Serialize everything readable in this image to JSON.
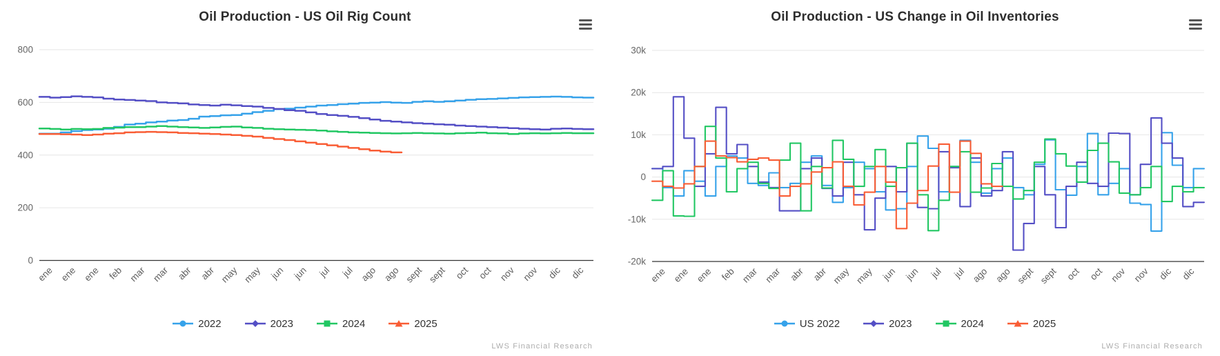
{
  "credits": "LWS Financial Research",
  "chart_data": [
    {
      "type": "line",
      "step": true,
      "title": "Oil Production - US Oil Rig Count",
      "xlabel": "",
      "ylabel": "",
      "grid": true,
      "legend_position": "bottom",
      "ylim": [
        0,
        800
      ],
      "ytick_values": [
        800,
        600,
        400,
        200,
        0
      ],
      "ytick_labels": [
        "800",
        "600",
        "400",
        "200",
        "0"
      ],
      "weeks": 52,
      "x_tick_labels": [
        "ene",
        "ene",
        "ene",
        "feb",
        "mar",
        "mar",
        "abr",
        "abr",
        "may",
        "may",
        "jun",
        "jun",
        "jul",
        "jul",
        "ago",
        "ago",
        "sept",
        "sept",
        "oct",
        "oct",
        "nov",
        "nov",
        "dic",
        "dic"
      ],
      "series": [
        {
          "name": "2022",
          "color": "#36a2ea",
          "marker": "circle",
          "values": [
            481,
            481,
            486,
            491,
            495,
            497,
            500,
            507,
            516,
            519,
            524,
            527,
            531,
            533,
            538,
            546,
            548,
            551,
            552,
            557,
            563,
            568,
            574,
            576,
            580,
            584,
            588,
            590,
            593,
            595,
            598,
            599,
            601,
            599,
            598,
            602,
            604,
            602,
            604,
            607,
            610,
            612,
            613,
            615,
            617,
            619,
            620,
            621,
            622,
            621,
            619,
            618
          ]
        },
        {
          "name": "2023",
          "color": "#544fc5",
          "marker": "diamond",
          "values": [
            621,
            618,
            620,
            623,
            621,
            619,
            614,
            611,
            609,
            607,
            605,
            600,
            598,
            596,
            592,
            590,
            588,
            591,
            589,
            586,
            584,
            579,
            575,
            570,
            568,
            562,
            556,
            552,
            549,
            545,
            540,
            535,
            530,
            527,
            524,
            521,
            519,
            517,
            515,
            512,
            510,
            508,
            506,
            504,
            502,
            500,
            498,
            497,
            500,
            501,
            499,
            498
          ]
        },
        {
          "name": "2024",
          "color": "#22c763",
          "marker": "square",
          "values": [
            501,
            499,
            497,
            499,
            498,
            499,
            503,
            504,
            506,
            506,
            508,
            510,
            508,
            506,
            505,
            503,
            505,
            507,
            508,
            505,
            503,
            500,
            498,
            497,
            496,
            495,
            493,
            490,
            488,
            486,
            485,
            484,
            483,
            482,
            483,
            484,
            483,
            482,
            481,
            483,
            484,
            485,
            483,
            482,
            480,
            482,
            483,
            482,
            483,
            484,
            483,
            483
          ]
        },
        {
          "name": "2025",
          "color": "#f95d35",
          "marker": "triangle",
          "values": [
            480,
            480,
            479,
            478,
            476,
            478,
            481,
            483,
            486,
            487,
            488,
            487,
            486,
            484,
            483,
            481,
            480,
            478,
            476,
            473,
            470,
            465,
            461,
            457,
            452,
            447,
            442,
            437,
            432,
            427,
            422,
            417,
            413,
            410
          ]
        }
      ]
    },
    {
      "type": "line",
      "step": true,
      "title": "Oil Production - US Change in Oil Inventories",
      "xlabel": "",
      "ylabel": "",
      "grid": true,
      "legend_position": "bottom",
      "ylim": [
        -20000,
        30000
      ],
      "ytick_values": [
        30000,
        20000,
        10000,
        0,
        -10000,
        -20000
      ],
      "ytick_labels": [
        "30k",
        "20k",
        "10k",
        "0",
        "-10k",
        "-20k"
      ],
      "weeks": 52,
      "x_tick_labels": [
        "ene",
        "ene",
        "ene",
        "feb",
        "mar",
        "mar",
        "abr",
        "abr",
        "may",
        "may",
        "jun",
        "jun",
        "jul",
        "jul",
        "ago",
        "ago",
        "sept",
        "sept",
        "oct",
        "oct",
        "nov",
        "nov",
        "dic",
        "dic"
      ],
      "series": [
        {
          "name": "US 2022",
          "color": "#36a2ea",
          "marker": "circle",
          "values": [
            2000,
            -2500,
            -4500,
            1500,
            -1000,
            -4500,
            2500,
            5000,
            4500,
            -1500,
            -2000,
            1000,
            -2500,
            -1500,
            3500,
            5000,
            -2000,
            -6000,
            -2500,
            3500,
            2000,
            -3500,
            -7800,
            -7500,
            2500,
            9700,
            6800,
            -3500,
            2500,
            8700,
            3500,
            -3800,
            2000,
            4500,
            -2500,
            -4200,
            3000,
            8800,
            -3000,
            -4300,
            2500,
            10300,
            -4200,
            -1500,
            2000,
            -6200,
            -6500,
            -12800,
            10500,
            2800,
            -2500,
            2000
          ]
        },
        {
          "name": "2023",
          "color": "#544fc5",
          "marker": "diamond",
          "values": [
            2000,
            2500,
            19000,
            9200,
            -2200,
            5500,
            16500,
            5500,
            7700,
            2500,
            -1200,
            -2500,
            -8000,
            -8000,
            2000,
            4500,
            -2700,
            -4500,
            3500,
            -4200,
            -12500,
            -5000,
            2500,
            -3500,
            8000,
            -7200,
            -7500,
            6000,
            2200,
            -7000,
            4500,
            -4500,
            -3200,
            6000,
            -17300,
            -11000,
            2500,
            -4200,
            -12000,
            -2200,
            3500,
            -1500,
            -2200,
            10400,
            10300,
            -4200,
            3000,
            14000,
            8000,
            4500,
            -7000,
            -6000
          ]
        },
        {
          "name": "2024",
          "color": "#22c763",
          "marker": "square",
          "values": [
            -5500,
            1500,
            -9200,
            -9300,
            2500,
            12000,
            4500,
            -3500,
            2000,
            3500,
            -1500,
            -2700,
            4000,
            8000,
            -8000,
            2500,
            -2600,
            8700,
            4200,
            -2200,
            2500,
            6500,
            -2200,
            2200,
            8000,
            -4200,
            -12700,
            -5500,
            2500,
            6000,
            -3600,
            -2600,
            3200,
            -2200,
            -5200,
            -3200,
            3500,
            9000,
            5500,
            2600,
            -1200,
            6300,
            8000,
            3600,
            -3800,
            -4200,
            -2500,
            2500,
            -5800,
            -2200,
            -3500,
            -2500
          ]
        },
        {
          "name": "2025",
          "color": "#f95d35",
          "marker": "triangle",
          "values": [
            -1000,
            -2200,
            -2600,
            -1600,
            2500,
            8500,
            5000,
            4600,
            3600,
            4200,
            4500,
            4000,
            -4500,
            -2200,
            -1600,
            1200,
            2200,
            3600,
            -2200,
            -6600,
            -3600,
            2500,
            -1200,
            -12200,
            -6200,
            -3200,
            2600,
            7800,
            -3600,
            8500,
            5600,
            -1600,
            -2200
          ]
        }
      ]
    }
  ]
}
